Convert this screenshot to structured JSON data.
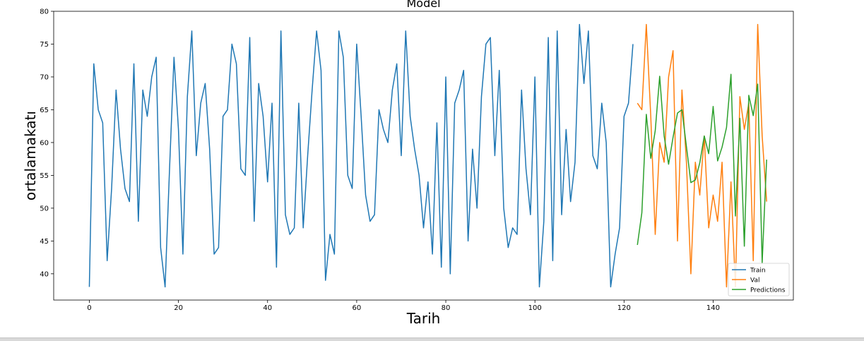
{
  "chart_data": {
    "type": "line",
    "title": "Model",
    "xlabel": "Tarih",
    "ylabel": "ortalamakatı",
    "xlim": [
      -8,
      158
    ],
    "ylim": [
      36,
      80
    ],
    "xticks": [
      0,
      20,
      40,
      60,
      80,
      100,
      120,
      140
    ],
    "yticks": [
      40,
      45,
      50,
      55,
      60,
      65,
      70,
      75,
      80
    ],
    "grid": false,
    "legend_position": "lower right",
    "series": [
      {
        "name": "Train",
        "color": "#1f77b4",
        "x_start": 0,
        "values": [
          38,
          72,
          65,
          63,
          42,
          53,
          68,
          59,
          53,
          51,
          72,
          48,
          68,
          64,
          70,
          73,
          44,
          38,
          56,
          73,
          62,
          43,
          67,
          77,
          58,
          66,
          69,
          59,
          43,
          44,
          64,
          65,
          75,
          72,
          56,
          55,
          76,
          48,
          69,
          64,
          54,
          66,
          41,
          77,
          49,
          46,
          47,
          66,
          47,
          58,
          68,
          77,
          71,
          39,
          46,
          43,
          77,
          73,
          55,
          53,
          75,
          64,
          52,
          48,
          49,
          65,
          62,
          60,
          68,
          72,
          58,
          77,
          64,
          59,
          55,
          47,
          54,
          43,
          63,
          41,
          70,
          40,
          66,
          68,
          71,
          45,
          59,
          50,
          67,
          75,
          76,
          58,
          71,
          50,
          44,
          47,
          46,
          68,
          56,
          49,
          70,
          38,
          48,
          76,
          42,
          77,
          49,
          62,
          51,
          57,
          78,
          69,
          77,
          58,
          56,
          66,
          60,
          38,
          43,
          47,
          64,
          66,
          75
        ]
      },
      {
        "name": "Val",
        "color": "#ff7f0e",
        "x_start": 123,
        "values": [
          66,
          65,
          78,
          64,
          46,
          60,
          57,
          70,
          74,
          45,
          68,
          57,
          40,
          57,
          52,
          61,
          47,
          52,
          48,
          57,
          38,
          54,
          38,
          67,
          62,
          66,
          42,
          78,
          61,
          51
        ]
      },
      {
        "name": "Predictions",
        "color": "#2ca02c",
        "x_start": 123,
        "values": [
          44.4,
          49.3,
          64.3,
          57.6,
          61.8,
          70.1,
          61.0,
          56.7,
          60.8,
          64.5,
          65.0,
          59.4,
          53.9,
          54.3,
          56.9,
          61.0,
          58.3,
          65.5,
          57.2,
          59.3,
          62.3,
          70.4,
          48.8,
          63.7,
          44.2,
          67.2,
          64.1,
          68.9,
          41.7,
          57.4
        ]
      }
    ]
  }
}
